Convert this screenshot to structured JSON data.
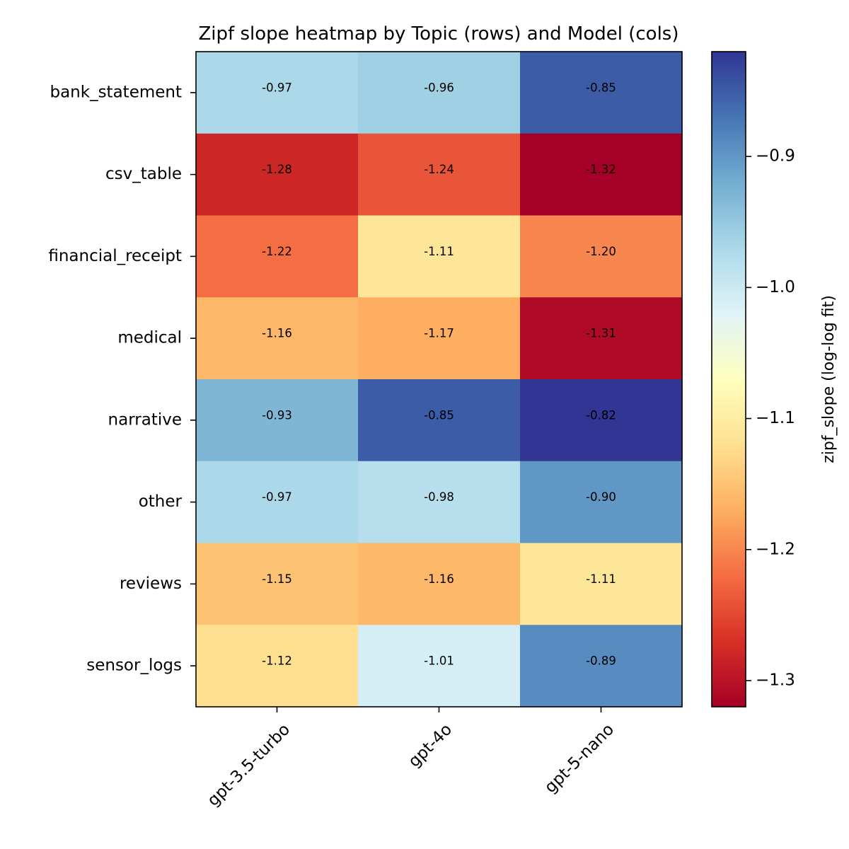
{
  "chart_data": {
    "type": "heatmap",
    "title": "Zipf slope heatmap by Topic (rows) and Model (cols)",
    "rows": [
      "bank_statement",
      "csv_table",
      "financial_receipt",
      "medical",
      "narrative",
      "other",
      "reviews",
      "sensor_logs"
    ],
    "columns": [
      "gpt-3.5-turbo",
      "gpt-4o",
      "gpt-5-nano"
    ],
    "values": [
      [
        -0.97,
        -0.96,
        -0.85
      ],
      [
        -1.28,
        -1.24,
        -1.32
      ],
      [
        -1.22,
        -1.11,
        -1.2
      ],
      [
        -1.16,
        -1.17,
        -1.31
      ],
      [
        -0.93,
        -0.85,
        -0.82
      ],
      [
        -0.97,
        -0.98,
        -0.9
      ],
      [
        -1.15,
        -1.16,
        -1.11
      ],
      [
        -1.12,
        -1.01,
        -0.89
      ]
    ],
    "value_labels": [
      [
        "-0.97",
        "-0.96",
        "-0.85"
      ],
      [
        "-1.28",
        "-1.24",
        "-1.32"
      ],
      [
        "-1.22",
        "-1.11",
        "-1.20"
      ],
      [
        "-1.16",
        "-1.17",
        "-1.31"
      ],
      [
        "-0.93",
        "-0.85",
        "-0.82"
      ],
      [
        "-0.97",
        "-0.98",
        "-0.90"
      ],
      [
        "-1.15",
        "-1.16",
        "-1.11"
      ],
      [
        "-1.12",
        "-1.01",
        "-0.89"
      ]
    ],
    "colormap": "RdYlBu",
    "colorbar": {
      "label": "zipf_slope (log-log fit)",
      "range": [
        -1.32,
        -0.82
      ],
      "ticks": [
        -0.9,
        -1.0,
        -1.1,
        -1.2,
        -1.3
      ],
      "tick_labels": [
        "−0.9",
        "−1.0",
        "−1.1",
        "−1.2",
        "−1.3"
      ]
    },
    "grid": false
  }
}
